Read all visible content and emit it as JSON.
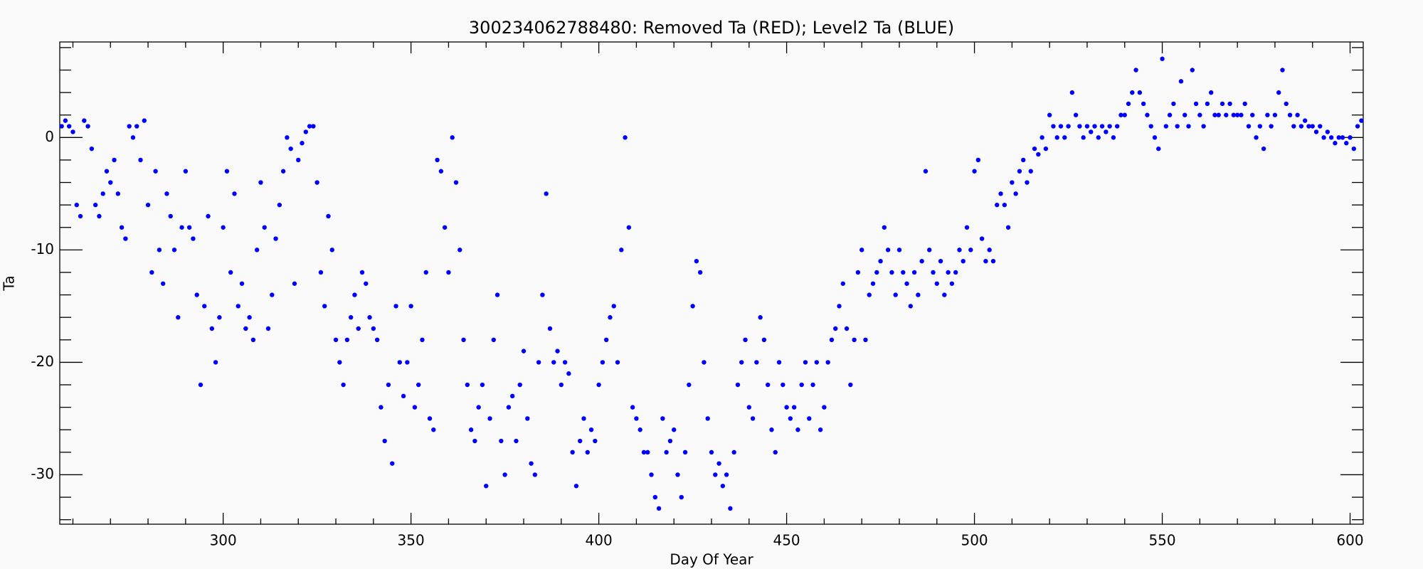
{
  "chart_data": {
    "type": "scatter",
    "title": "300234062788480: Removed Ta (RED); Level2 Ta (BLUE)",
    "x_label": "Day Of Year",
    "y_label": "Ta",
    "color": "#0000ff",
    "xlim": [
      256.5,
      603.5
    ],
    "ylim": [
      -34.4,
      8.5
    ],
    "xticks": [
      300,
      350,
      400,
      450,
      500,
      550,
      600
    ],
    "yticks": [
      -30,
      -20,
      -10,
      0
    ],
    "xminorticks": [
      260,
      270,
      280,
      290,
      310,
      320,
      330,
      340,
      360,
      370,
      380,
      390,
      410,
      420,
      430,
      440,
      460,
      470,
      480,
      490,
      510,
      520,
      530,
      540,
      560,
      570,
      580,
      590
    ],
    "yminorticks": [
      -34,
      -32,
      -28,
      -26,
      -24,
      -22,
      -18,
      -16,
      -14,
      -12,
      -8,
      -6,
      -4,
      -2,
      2,
      4,
      6,
      8
    ],
    "x": [
      257,
      258,
      259,
      260,
      261,
      262,
      263,
      264,
      265,
      266,
      267,
      268,
      269,
      270,
      271,
      272,
      273,
      274,
      275,
      276,
      277,
      278,
      279,
      280,
      281,
      282,
      283,
      284,
      285,
      286,
      287,
      288,
      289,
      290,
      291,
      292,
      293,
      294,
      295,
      296,
      297,
      298,
      299,
      300,
      301,
      302,
      303,
      304,
      305,
      306,
      307,
      308,
      309,
      310,
      311,
      312,
      313,
      314,
      315,
      316,
      317,
      318,
      319,
      320,
      321,
      322,
      323,
      324,
      325,
      326,
      327,
      328,
      329,
      330,
      331,
      332,
      333,
      334,
      335,
      336,
      337,
      338,
      339,
      340,
      341,
      342,
      343,
      344,
      345,
      346,
      347,
      348,
      349,
      350,
      351,
      352,
      353,
      354,
      355,
      356,
      357,
      358,
      359,
      360,
      361,
      362,
      363,
      364,
      365,
      366,
      367,
      368,
      369,
      370,
      371,
      372,
      373,
      374,
      375,
      376,
      377,
      378,
      379,
      380,
      381,
      382,
      383,
      384,
      385,
      386,
      387,
      388,
      389,
      390,
      391,
      392,
      393,
      394,
      395,
      396,
      397,
      398,
      399,
      400,
      401,
      402,
      403,
      404,
      405,
      406,
      407,
      408,
      409,
      410,
      411,
      412,
      413,
      414,
      415,
      416,
      417,
      418,
      419,
      420,
      421,
      422,
      423,
      424,
      425,
      426,
      427,
      428,
      429,
      430,
      431,
      432,
      433,
      434,
      435,
      436,
      437,
      438,
      439,
      440,
      441,
      442,
      443,
      444,
      445,
      446,
      447,
      448,
      449,
      450,
      451,
      452,
      453,
      454,
      455,
      456,
      457,
      458,
      459,
      460,
      461,
      462,
      463,
      464,
      465,
      466,
      467,
      468,
      469,
      470,
      471,
      472,
      473,
      474,
      475,
      476,
      477,
      478,
      479,
      480,
      481,
      482,
      483,
      484,
      485,
      486,
      487,
      488,
      489,
      490,
      491,
      492,
      493,
      494,
      495,
      496,
      497,
      498,
      499,
      500,
      501,
      502,
      503,
      504,
      505,
      506,
      507,
      508,
      509,
      510,
      511,
      512,
      513,
      514,
      515,
      516,
      517,
      518,
      519,
      520,
      521,
      522,
      523,
      524,
      525,
      526,
      527,
      528,
      529,
      530,
      531,
      532,
      533,
      534,
      535,
      536,
      537,
      538,
      539,
      540,
      541,
      542,
      543,
      544,
      545,
      546,
      547,
      548,
      549,
      550,
      551,
      552,
      553,
      554,
      555,
      556,
      557,
      558,
      559,
      560,
      561,
      562,
      563,
      564,
      565,
      566,
      567,
      568,
      569,
      570,
      571,
      572,
      573,
      574,
      575,
      576,
      577,
      578,
      579,
      580,
      581,
      582,
      583,
      584,
      585,
      586,
      587,
      588,
      589,
      590,
      591,
      592,
      593,
      594,
      595,
      596,
      597,
      598,
      599,
      600,
      601,
      602,
      603
    ],
    "values": [
      1,
      1.5,
      1,
      0.5,
      -6,
      -7,
      1.5,
      1,
      -1,
      -6,
      -7,
      -5,
      -3,
      -4,
      -2,
      -5,
      -8,
      -9,
      1,
      0,
      1,
      -2,
      1.5,
      -6,
      -12,
      -3,
      -10,
      -13,
      -5,
      -7,
      -10,
      -16,
      -8,
      -3,
      -8,
      -9,
      -14,
      -22,
      -15,
      -7,
      -17,
      -20,
      -16,
      -8,
      -3,
      -12,
      -5,
      -15,
      -13,
      -17,
      -16,
      -18,
      -10,
      -4,
      -8,
      -17,
      -14,
      -9,
      -6,
      -3,
      0,
      -1,
      -13,
      -2,
      -0.5,
      0.5,
      1,
      1,
      -4,
      -12,
      -15,
      -7,
      -10,
      -18,
      -20,
      -22,
      -18,
      -16,
      -14,
      -17,
      -12,
      -13,
      -16,
      -17,
      -18,
      -24,
      -27,
      -22,
      -29,
      -15,
      -20,
      -23,
      -20,
      -15,
      -24,
      -22,
      -18,
      -12,
      -25,
      -26,
      -2,
      -3,
      -8,
      -12,
      0,
      -4,
      -10,
      -18,
      -22,
      -26,
      -27,
      -24,
      -22,
      -31,
      -25,
      -18,
      -14,
      -27,
      -30,
      -24,
      -23,
      -27,
      -22,
      -19,
      -25,
      -29,
      -30,
      -20,
      -14,
      -5,
      -17,
      -20,
      -19,
      -22,
      -20,
      -21,
      -28,
      -31,
      -27,
      -25,
      -28,
      -26,
      -27,
      -22,
      -20,
      -18,
      -16,
      -15,
      -20,
      -10,
      0,
      -8,
      -24,
      -25,
      -26,
      -28,
      -28,
      -30,
      -32,
      -33,
      -25,
      -28,
      -27,
      -26,
      -30,
      -32,
      -28,
      -22,
      -15,
      -11,
      -12,
      -20,
      -25,
      -28,
      -30,
      -29,
      -31,
      -30,
      -33,
      -28,
      -22,
      -20,
      -18,
      -24,
      -25,
      -20,
      -16,
      -18,
      -22,
      -26,
      -28,
      -20,
      -22,
      -24,
      -25,
      -24,
      -26,
      -22,
      -20,
      -25,
      -22,
      -20,
      -26,
      -24,
      -20,
      -18,
      -17,
      -15,
      -13,
      -17,
      -22,
      -18,
      -12,
      -10,
      -18,
      -14,
      -13,
      -12,
      -11,
      -8,
      -10,
      -12,
      -14,
      -10,
      -12,
      -13,
      -15,
      -12,
      -14,
      -11,
      -3,
      -10,
      -12,
      -13,
      -11,
      -14,
      -12,
      -13,
      -12,
      -10,
      -11,
      -8,
      -10,
      -3,
      -2,
      -9,
      -11,
      -10,
      -11,
      -6,
      -5,
      -6,
      -8,
      -4,
      -5,
      -3,
      -2,
      -4,
      -3,
      -1,
      -1.5,
      0,
      -1,
      2,
      1,
      0,
      1,
      0,
      1,
      4,
      2,
      1,
      0,
      1,
      0.5,
      1,
      0,
      1,
      0.5,
      1,
      0,
      1,
      2,
      2,
      3,
      4,
      6,
      4,
      3,
      2,
      1,
      0,
      -1,
      7,
      1,
      2,
      3,
      1,
      5,
      2,
      1,
      6,
      3,
      2,
      1,
      3,
      4,
      2,
      2,
      3,
      2,
      3,
      2,
      2,
      2,
      3,
      1,
      2,
      0,
      1,
      -1,
      2,
      1,
      2,
      4,
      6,
      3,
      2,
      1,
      2,
      1,
      1.5,
      1,
      1,
      0.5,
      1,
      0,
      0.5,
      0,
      -0.5,
      0,
      0,
      -0.5,
      0,
      -1,
      1,
      1.5
    ]
  }
}
